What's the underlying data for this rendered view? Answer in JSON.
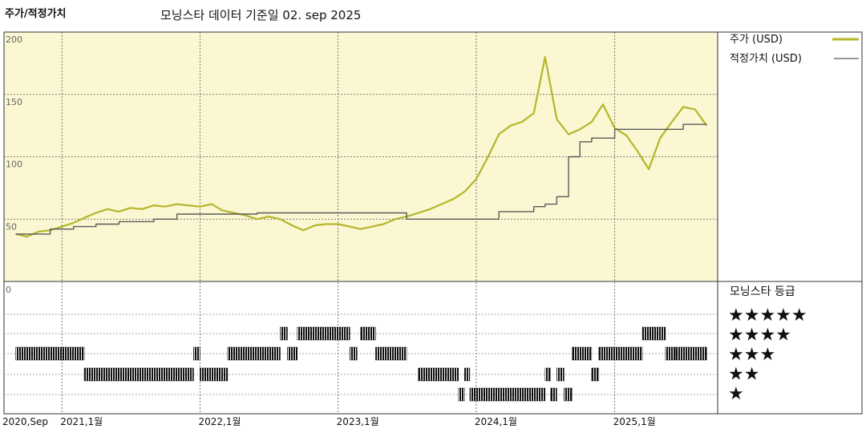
{
  "header": {
    "chart_title": "주가/적정가치",
    "subtitle": "모닝스타 데이터 기준일 02. sep 2025"
  },
  "colors": {
    "panel_bg": "#fbf7d3",
    "price_line": "#b6b52a",
    "fair_line": "#5a5a5a",
    "rating_bar": "#111111"
  },
  "chart_data": [
    {
      "type": "line",
      "title": "주가/적정가치",
      "ylim": [
        0,
        200
      ],
      "y_ticks": [
        "0",
        "50",
        "100",
        "150",
        "200"
      ],
      "x_ticks": [
        "2020,Sep",
        "2021,1월",
        "2022,1월",
        "2023,1월",
        "2024,1월",
        "2025,1월"
      ],
      "grid": true,
      "legend_position": "right",
      "series": [
        {
          "name": "주가 (USD)",
          "points": [
            [
              "2020-09-01",
              38
            ],
            [
              "2020-10-01",
              36
            ],
            [
              "2020-11-01",
              40
            ],
            [
              "2020-12-01",
              41
            ],
            [
              "2021-01-01",
              44
            ],
            [
              "2021-02-01",
              47
            ],
            [
              "2021-03-01",
              51
            ],
            [
              "2021-04-01",
              55
            ],
            [
              "2021-05-01",
              58
            ],
            [
              "2021-06-01",
              56
            ],
            [
              "2021-07-01",
              59
            ],
            [
              "2021-08-01",
              58
            ],
            [
              "2021-09-01",
              61
            ],
            [
              "2021-10-01",
              60
            ],
            [
              "2021-11-01",
              62
            ],
            [
              "2021-12-01",
              61
            ],
            [
              "2022-01-01",
              60
            ],
            [
              "2022-02-01",
              62
            ],
            [
              "2022-03-01",
              57
            ],
            [
              "2022-04-01",
              55
            ],
            [
              "2022-05-01",
              53
            ],
            [
              "2022-06-01",
              50
            ],
            [
              "2022-07-01",
              52
            ],
            [
              "2022-08-01",
              50
            ],
            [
              "2022-09-01",
              45
            ],
            [
              "2022-10-01",
              41
            ],
            [
              "2022-11-01",
              45
            ],
            [
              "2022-12-01",
              46
            ],
            [
              "2023-01-01",
              46
            ],
            [
              "2023-02-01",
              44
            ],
            [
              "2023-03-01",
              42
            ],
            [
              "2023-04-01",
              44
            ],
            [
              "2023-05-01",
              46
            ],
            [
              "2023-06-01",
              50
            ],
            [
              "2023-07-01",
              52
            ],
            [
              "2023-08-01",
              55
            ],
            [
              "2023-09-01",
              58
            ],
            [
              "2023-10-01",
              62
            ],
            [
              "2023-11-01",
              66
            ],
            [
              "2023-12-01",
              72
            ],
            [
              "2024-01-01",
              82
            ],
            [
              "2024-02-01",
              100
            ],
            [
              "2024-03-01",
              118
            ],
            [
              "2024-04-01",
              125
            ],
            [
              "2024-05-01",
              128
            ],
            [
              "2024-06-01",
              135
            ],
            [
              "2024-07-01",
              180
            ],
            [
              "2024-08-01",
              130
            ],
            [
              "2024-09-01",
              118
            ],
            [
              "2024-10-01",
              122
            ],
            [
              "2024-11-01",
              128
            ],
            [
              "2024-12-01",
              142
            ],
            [
              "2025-01-01",
              123
            ],
            [
              "2025-02-01",
              117
            ],
            [
              "2025-03-01",
              105
            ],
            [
              "2025-04-01",
              90
            ],
            [
              "2025-05-01",
              115
            ],
            [
              "2025-06-01",
              128
            ],
            [
              "2025-07-01",
              140
            ],
            [
              "2025-08-01",
              138
            ],
            [
              "2025-09-01",
              125
            ]
          ]
        },
        {
          "name": "적정가치 (USD)",
          "points": [
            [
              "2020-09-01",
              38
            ],
            [
              "2020-10-01",
              38
            ],
            [
              "2020-11-01",
              38
            ],
            [
              "2020-12-01",
              42
            ],
            [
              "2021-01-01",
              42
            ],
            [
              "2021-02-01",
              44
            ],
            [
              "2021-03-01",
              44
            ],
            [
              "2021-04-01",
              46
            ],
            [
              "2021-05-01",
              46
            ],
            [
              "2021-06-01",
              48
            ],
            [
              "2021-07-01",
              48
            ],
            [
              "2021-08-01",
              48
            ],
            [
              "2021-09-01",
              50
            ],
            [
              "2021-10-01",
              50
            ],
            [
              "2021-11-01",
              54
            ],
            [
              "2021-12-01",
              54
            ],
            [
              "2022-01-01",
              54
            ],
            [
              "2022-02-01",
              54
            ],
            [
              "2022-03-01",
              54
            ],
            [
              "2022-04-01",
              54
            ],
            [
              "2022-05-01",
              54
            ],
            [
              "2022-06-01",
              55
            ],
            [
              "2022-07-01",
              55
            ],
            [
              "2022-08-01",
              55
            ],
            [
              "2022-09-01",
              55
            ],
            [
              "2022-10-01",
              55
            ],
            [
              "2022-11-01",
              55
            ],
            [
              "2022-12-01",
              55
            ],
            [
              "2023-01-01",
              55
            ],
            [
              "2023-02-01",
              55
            ],
            [
              "2023-03-01",
              55
            ],
            [
              "2023-04-01",
              55
            ],
            [
              "2023-05-01",
              55
            ],
            [
              "2023-06-01",
              55
            ],
            [
              "2023-07-01",
              50
            ],
            [
              "2023-08-01",
              50
            ],
            [
              "2023-09-01",
              50
            ],
            [
              "2023-10-01",
              50
            ],
            [
              "2023-11-01",
              50
            ],
            [
              "2023-12-01",
              50
            ],
            [
              "2024-01-01",
              50
            ],
            [
              "2024-02-01",
              50
            ],
            [
              "2024-03-01",
              56
            ],
            [
              "2024-04-01",
              56
            ],
            [
              "2024-05-01",
              56
            ],
            [
              "2024-06-01",
              60
            ],
            [
              "2024-07-01",
              62
            ],
            [
              "2024-08-01",
              68
            ],
            [
              "2024-09-01",
              100
            ],
            [
              "2024-10-01",
              112
            ],
            [
              "2024-11-01",
              115
            ],
            [
              "2024-12-01",
              115
            ],
            [
              "2025-01-01",
              122
            ],
            [
              "2025-02-01",
              122
            ],
            [
              "2025-03-01",
              122
            ],
            [
              "2025-04-01",
              122
            ],
            [
              "2025-05-01",
              122
            ],
            [
              "2025-06-01",
              122
            ],
            [
              "2025-07-01",
              126
            ],
            [
              "2025-08-01",
              126
            ],
            [
              "2025-09-01",
              126
            ]
          ]
        }
      ]
    },
    {
      "type": "timeline",
      "title": "모닝스타 등급",
      "levels": [
        "★★★★★",
        "★★★★",
        "★★★",
        "★★",
        "★"
      ],
      "segments": [
        {
          "start": "2020-09-01",
          "end": "2021-03-01",
          "stars": 3
        },
        {
          "start": "2021-03-01",
          "end": "2021-12-15",
          "stars": 2
        },
        {
          "start": "2021-12-15",
          "end": "2022-01-01",
          "stars": 3
        },
        {
          "start": "2022-01-01",
          "end": "2022-03-15",
          "stars": 2
        },
        {
          "start": "2022-03-15",
          "end": "2022-08-01",
          "stars": 3
        },
        {
          "start": "2022-08-01",
          "end": "2022-08-20",
          "stars": 4
        },
        {
          "start": "2022-08-20",
          "end": "2022-09-15",
          "stars": 3
        },
        {
          "start": "2022-09-15",
          "end": "2023-02-01",
          "stars": 4
        },
        {
          "start": "2023-02-01",
          "end": "2023-02-20",
          "stars": 3
        },
        {
          "start": "2023-03-01",
          "end": "2023-04-10",
          "stars": 4
        },
        {
          "start": "2023-04-10",
          "end": "2023-07-01",
          "stars": 3
        },
        {
          "start": "2023-08-01",
          "end": "2023-11-15",
          "stars": 2
        },
        {
          "start": "2023-11-15",
          "end": "2023-12-01",
          "stars": 1
        },
        {
          "start": "2023-12-01",
          "end": "2023-12-15",
          "stars": 2
        },
        {
          "start": "2023-12-15",
          "end": "2024-07-01",
          "stars": 1
        },
        {
          "start": "2024-07-01",
          "end": "2024-07-15",
          "stars": 2
        },
        {
          "start": "2024-07-15",
          "end": "2024-08-01",
          "stars": 1
        },
        {
          "start": "2024-08-01",
          "end": "2024-08-20",
          "stars": 2
        },
        {
          "start": "2024-08-20",
          "end": "2024-09-10",
          "stars": 1
        },
        {
          "start": "2024-09-10",
          "end": "2024-11-01",
          "stars": 3
        },
        {
          "start": "2024-11-01",
          "end": "2024-11-20",
          "stars": 2
        },
        {
          "start": "2024-11-20",
          "end": "2025-03-15",
          "stars": 3
        },
        {
          "start": "2025-03-15",
          "end": "2025-05-15",
          "stars": 4
        },
        {
          "start": "2025-05-15",
          "end": "2025-06-10",
          "stars": 3
        },
        {
          "start": "2025-06-10",
          "end": "2025-09-01",
          "stars": 3
        }
      ]
    }
  ]
}
